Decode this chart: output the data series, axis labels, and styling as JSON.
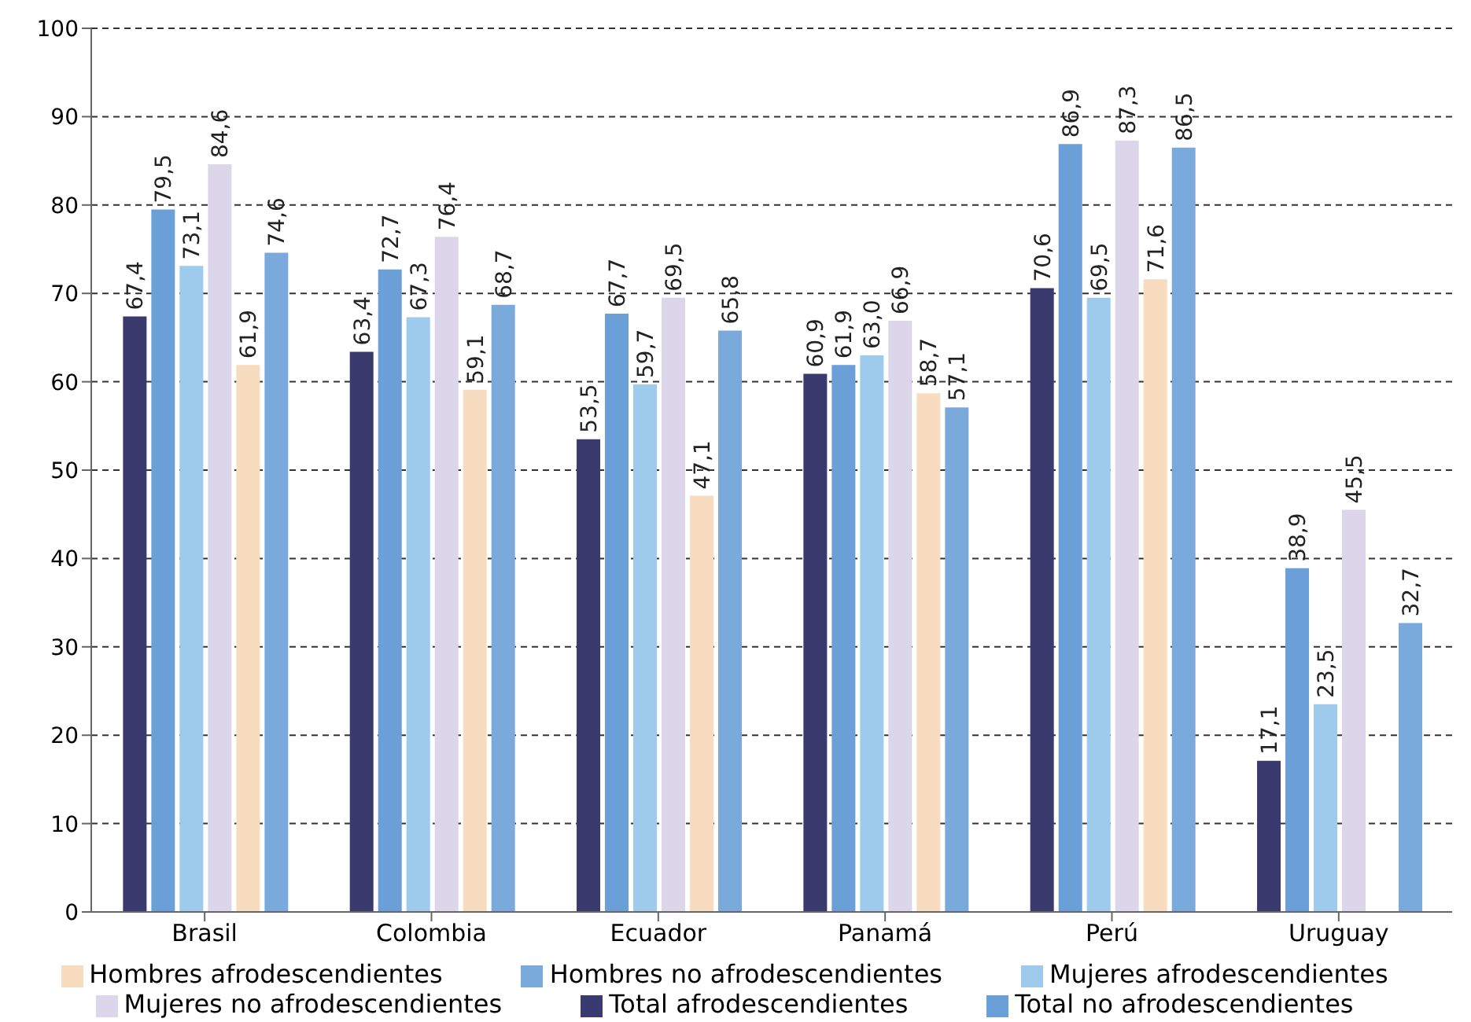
{
  "chart_data": {
    "type": "bar",
    "categories": [
      "Brasil",
      "Colombia",
      "Ecuador",
      "Panamá",
      "Perú",
      "Uruguay"
    ],
    "series": [
      {
        "name": "Total afrodescendientes",
        "color": "#3b3a6e",
        "values": [
          67.4,
          63.4,
          53.5,
          60.9,
          70.6,
          17.1
        ],
        "value_labels": [
          "67,4",
          "63,4",
          "53,5",
          "60,9",
          "70,6",
          "17,1"
        ]
      },
      {
        "name": "Total no afrodescendientes",
        "color": "#6a9fd8",
        "values": [
          79.5,
          72.7,
          67.7,
          61.9,
          86.9,
          38.9
        ],
        "value_labels": [
          "79,5",
          "72,7",
          "67,7",
          "61,9",
          "86,9",
          "38,9"
        ]
      },
      {
        "name": "Mujeres afrodescendientes",
        "color": "#9ecaec",
        "values": [
          73.1,
          67.3,
          59.7,
          63.0,
          69.5,
          23.5
        ],
        "value_labels": [
          "73,1",
          "67,3",
          "59,7",
          "63,0",
          "69,5",
          "23,5"
        ]
      },
      {
        "name": "Mujeres no afrodescendientes",
        "color": "#dcd6ea",
        "values": [
          84.6,
          76.4,
          69.5,
          66.9,
          87.3,
          45.5
        ],
        "value_labels": [
          "84,6",
          "76,4",
          "69,5",
          "66,9",
          "87,3",
          "45,5"
        ]
      },
      {
        "name": "Hombres  afrodescendientes",
        "color": "#f8dcc0",
        "values": [
          61.9,
          59.1,
          47.1,
          58.7,
          71.6,
          null
        ],
        "value_labels": [
          "61,9",
          "59,1",
          "47,1",
          "58,7",
          "71,6",
          null
        ]
      },
      {
        "name": "Hombres  no afrodescendientes",
        "color": "#7aa9dc",
        "values": [
          74.6,
          68.7,
          65.8,
          57.1,
          86.5,
          32.7
        ],
        "value_labels": [
          "74,6",
          "68,7",
          "65,8",
          "57,1",
          "86,5",
          "32,7"
        ]
      }
    ],
    "ylim": [
      0,
      100
    ],
    "yticks": [
      0,
      10,
      20,
      30,
      40,
      50,
      60,
      70,
      80,
      90,
      100
    ],
    "grid": "y",
    "legend": "bottom"
  }
}
